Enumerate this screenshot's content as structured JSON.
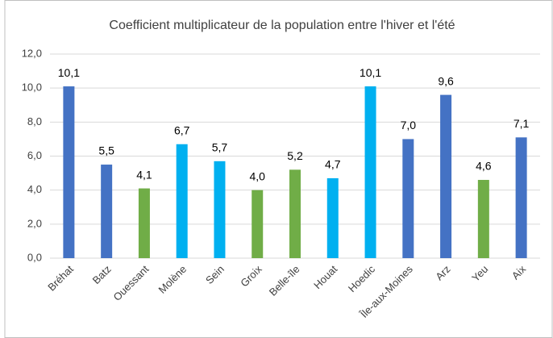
{
  "chart_data": {
    "type": "bar",
    "title": "Coefficient multiplicateur de la population entre l'hiver et l'été",
    "categories": [
      "Bréhat",
      "Batz",
      "Ouessant",
      "Molène",
      "Sein",
      "Groix",
      "Belle-île",
      "Houat",
      "Hoedic",
      "Île-aux-Moines",
      "Arz",
      "Yeu",
      "Aix"
    ],
    "values": [
      10.1,
      5.5,
      4.1,
      6.7,
      5.7,
      4.0,
      5.2,
      4.7,
      10.1,
      7.0,
      9.6,
      4.6,
      7.1
    ],
    "value_labels": [
      "10,1",
      "5,5",
      "4,1",
      "6,7",
      "5,7",
      "4,0",
      "5,2",
      "4,7",
      "10,1",
      "7,0",
      "9,6",
      "4,6",
      "7,1"
    ],
    "colors": [
      "#4472c4",
      "#4472c4",
      "#70ad47",
      "#00b0f0",
      "#00b0f0",
      "#70ad47",
      "#70ad47",
      "#00b0f0",
      "#00b0f0",
      "#4472c4",
      "#4472c4",
      "#70ad47",
      "#4472c4"
    ],
    "ylim": [
      0,
      12
    ],
    "yticks": [
      {
        "value": 0,
        "label": "0,0"
      },
      {
        "value": 2,
        "label": "2,0"
      },
      {
        "value": 4,
        "label": "4,0"
      },
      {
        "value": 6,
        "label": "6,0"
      },
      {
        "value": 8,
        "label": "8,0"
      },
      {
        "value": 10,
        "label": "10,0"
      },
      {
        "value": 12,
        "label": "12,0"
      }
    ],
    "grid": true
  }
}
